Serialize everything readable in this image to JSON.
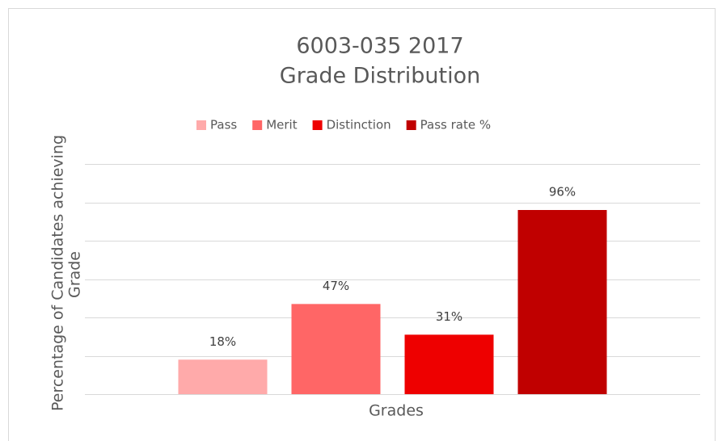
{
  "chart_data": {
    "type": "bar",
    "title": [
      "6003-035 2017",
      "Grade Distribution"
    ],
    "y_label": [
      "Percentage of Candidates achieving",
      "Grade"
    ],
    "x_label": "Grades",
    "categories": [
      null
    ],
    "series": [
      {
        "name": "Pass",
        "color": "#ffaaaa",
        "values": [
          18
        ],
        "value_labels": [
          "18%"
        ]
      },
      {
        "name": "Merit",
        "color": "#ff6666",
        "values": [
          47
        ],
        "value_labels": [
          "47%"
        ]
      },
      {
        "name": "Distinction",
        "color": "#ee0000",
        "values": [
          31
        ],
        "value_labels": [
          "31%"
        ]
      },
      {
        "name": "Pass rate %",
        "color": "#c00000",
        "values": [
          96
        ],
        "value_labels": [
          "96%"
        ]
      }
    ],
    "ylim": [
      0,
      120
    ],
    "yticks": [
      0,
      20,
      40,
      60,
      80,
      100,
      120
    ],
    "grid": true,
    "legend": "top"
  }
}
